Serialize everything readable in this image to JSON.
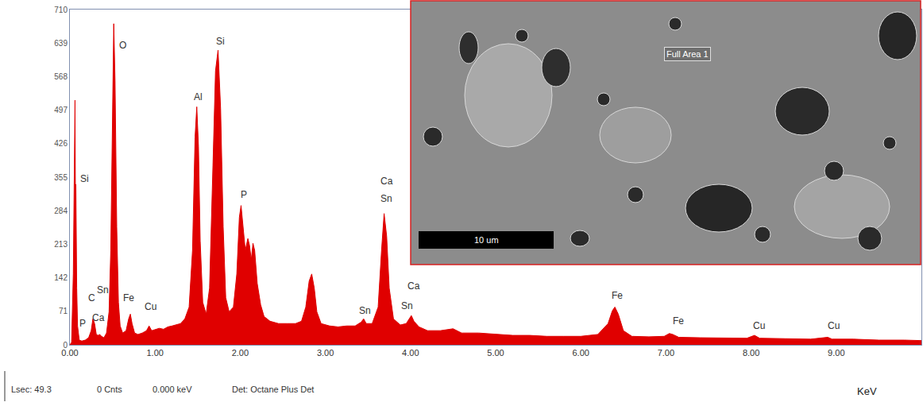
{
  "chart_data": {
    "type": "area",
    "xlabel": "KeV",
    "color": "#e00000",
    "grid": false,
    "xlim": [
      0,
      10
    ],
    "ylim": [
      0,
      710
    ],
    "xticks": [
      {
        "value": 0,
        "label": "0.00"
      },
      {
        "value": 1,
        "label": "1.00"
      },
      {
        "value": 2,
        "label": "2.00"
      },
      {
        "value": 3,
        "label": "3.00"
      },
      {
        "value": 4,
        "label": "4.00"
      },
      {
        "value": 5,
        "label": "5.00"
      },
      {
        "value": 6,
        "label": "6.00"
      },
      {
        "value": 7,
        "label": "7.00"
      },
      {
        "value": 8,
        "label": "8.00"
      },
      {
        "value": 9,
        "label": "9.00"
      }
    ],
    "yticks": [
      0,
      71,
      142,
      213,
      284,
      355,
      426,
      497,
      568,
      639,
      710
    ],
    "x": [
      0.0,
      0.02,
      0.04,
      0.05,
      0.06,
      0.065,
      0.07,
      0.08,
      0.09,
      0.11,
      0.14,
      0.18,
      0.22,
      0.25,
      0.27,
      0.29,
      0.31,
      0.33,
      0.35,
      0.37,
      0.4,
      0.43,
      0.46,
      0.48,
      0.5,
      0.515,
      0.53,
      0.55,
      0.57,
      0.59,
      0.62,
      0.66,
      0.69,
      0.71,
      0.73,
      0.76,
      0.8,
      0.85,
      0.9,
      0.93,
      0.96,
      1.0,
      1.05,
      1.1,
      1.15,
      1.2,
      1.25,
      1.3,
      1.35,
      1.4,
      1.44,
      1.47,
      1.49,
      1.51,
      1.53,
      1.56,
      1.6,
      1.64,
      1.68,
      1.71,
      1.74,
      1.77,
      1.8,
      1.83,
      1.87,
      1.92,
      1.96,
      1.99,
      2.01,
      2.03,
      2.06,
      2.09,
      2.11,
      2.13,
      2.15,
      2.17,
      2.2,
      2.24,
      2.28,
      2.35,
      2.45,
      2.55,
      2.65,
      2.72,
      2.77,
      2.81,
      2.84,
      2.87,
      2.9,
      2.95,
      3.05,
      3.15,
      3.25,
      3.35,
      3.42,
      3.45,
      3.48,
      3.55,
      3.62,
      3.66,
      3.69,
      3.72,
      3.75,
      3.8,
      3.88,
      3.95,
      3.99,
      4.01,
      4.04,
      4.1,
      4.2,
      4.35,
      4.5,
      4.6,
      4.8,
      5.0,
      5.2,
      5.4,
      5.6,
      5.8,
      6.0,
      6.2,
      6.32,
      6.37,
      6.4,
      6.44,
      6.5,
      6.6,
      6.8,
      6.98,
      7.04,
      7.08,
      7.15,
      7.4,
      7.7,
      7.95,
      8.04,
      8.1,
      8.4,
      8.7,
      8.9,
      8.95,
      9.2,
      9.5,
      9.8,
      10.0
    ],
    "values": [
      0,
      5,
      150,
      360,
      518,
      300,
      340,
      120,
      40,
      10,
      8,
      10,
      15,
      30,
      55,
      45,
      22,
      20,
      22,
      18,
      15,
      25,
      70,
      200,
      520,
      680,
      560,
      250,
      90,
      40,
      25,
      30,
      55,
      65,
      45,
      25,
      22,
      25,
      30,
      40,
      30,
      32,
      35,
      33,
      38,
      40,
      42,
      45,
      55,
      80,
      200,
      440,
      504,
      420,
      220,
      90,
      65,
      120,
      380,
      580,
      624,
      500,
      250,
      100,
      70,
      80,
      150,
      270,
      295,
      260,
      200,
      225,
      210,
      180,
      215,
      200,
      130,
      85,
      60,
      50,
      45,
      45,
      45,
      50,
      80,
      135,
      150,
      120,
      70,
      45,
      40,
      38,
      40,
      40,
      48,
      55,
      45,
      45,
      80,
      200,
      278,
      230,
      120,
      55,
      42,
      45,
      58,
      62,
      50,
      38,
      30,
      30,
      34,
      25,
      25,
      22,
      20,
      20,
      18,
      18,
      18,
      22,
      45,
      72,
      80,
      65,
      30,
      18,
      17,
      18,
      24,
      22,
      16,
      15,
      14,
      14,
      20,
      14,
      13,
      12,
      16,
      12,
      12,
      10,
      10,
      9
    ],
    "annotations": [
      {
        "text": "Si",
        "x": 0.17,
        "y": 352
      },
      {
        "text": "O",
        "x": 0.62,
        "y": 634
      },
      {
        "text": "C",
        "x": 0.26,
        "y": 99
      },
      {
        "text": "Sn",
        "x": 0.39,
        "y": 116
      },
      {
        "text": "P",
        "x": 0.15,
        "y": 45
      },
      {
        "text": "Ca",
        "x": 0.34,
        "y": 58
      },
      {
        "text": "Fe",
        "x": 0.69,
        "y": 100
      },
      {
        "text": "Cu",
        "x": 0.95,
        "y": 80
      },
      {
        "text": "Al",
        "x": 1.51,
        "y": 525
      },
      {
        "text": "Si",
        "x": 1.77,
        "y": 643
      },
      {
        "text": "P",
        "x": 2.04,
        "y": 318
      },
      {
        "text": "Ca",
        "x": 3.72,
        "y": 347
      },
      {
        "text": "Sn",
        "x": 3.72,
        "y": 310
      },
      {
        "text": "Ca",
        "x": 4.04,
        "y": 125
      },
      {
        "text": "Sn",
        "x": 3.47,
        "y": 72
      },
      {
        "text": "Sn",
        "x": 3.96,
        "y": 82
      },
      {
        "text": "Fe",
        "x": 6.43,
        "y": 105
      },
      {
        "text": "Fe",
        "x": 7.15,
        "y": 50
      },
      {
        "text": "Cu",
        "x": 8.09,
        "y": 40
      },
      {
        "text": "Cu",
        "x": 8.97,
        "y": 40
      }
    ],
    "footer": [
      "Lsec: 49.3",
      "0 Cnts",
      "0.000 keV",
      "Det: Octane Plus Det"
    ],
    "inset": {
      "label": "Full Area 1",
      "scale_bar": "10 um"
    }
  }
}
